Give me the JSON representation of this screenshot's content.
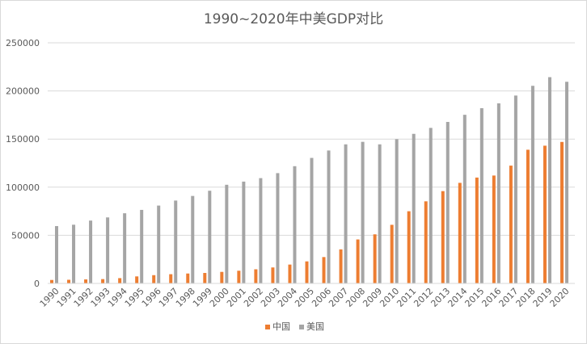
{
  "chart_data": {
    "type": "bar",
    "title": "1990~2020年中美GDP对比",
    "xlabel": "",
    "ylabel": "",
    "ylim": [
      0,
      250000
    ],
    "yticks": [
      0,
      50000,
      100000,
      150000,
      200000,
      250000
    ],
    "grid": true,
    "legend_position": "bottom",
    "categories": [
      "1990",
      "1991",
      "1992",
      "1993",
      "1994",
      "1995",
      "1996",
      "1997",
      "1998",
      "1999",
      "2000",
      "2001",
      "2002",
      "2003",
      "2004",
      "2005",
      "2006",
      "2007",
      "2008",
      "2009",
      "2010",
      "2011",
      "2012",
      "2013",
      "2014",
      "2015",
      "2016",
      "2017",
      "2018",
      "2019",
      "2020"
    ],
    "series": [
      {
        "name": "中国",
        "color": "#ed7d31",
        "values": [
          3600,
          3800,
          4200,
          4500,
          5500,
          7300,
          8600,
          9600,
          10300,
          10900,
          12000,
          13200,
          14700,
          16600,
          19600,
          22900,
          27400,
          35400,
          45700,
          51000,
          60900,
          75000,
          85300,
          95900,
          104500,
          110000,
          112100,
          122400,
          138900,
          143100,
          147000
        ]
      },
      {
        "name": "美国",
        "color": "#a5a5a5",
        "values": [
          59600,
          61000,
          65300,
          68600,
          72900,
          76400,
          80900,
          86100,
          90900,
          96300,
          102500,
          105800,
          109400,
          114600,
          121800,
          130400,
          138100,
          144500,
          147100,
          144500,
          149900,
          155400,
          161600,
          167800,
          175200,
          182100,
          187100,
          195200,
          205300,
          214300,
          209500
        ]
      }
    ]
  }
}
